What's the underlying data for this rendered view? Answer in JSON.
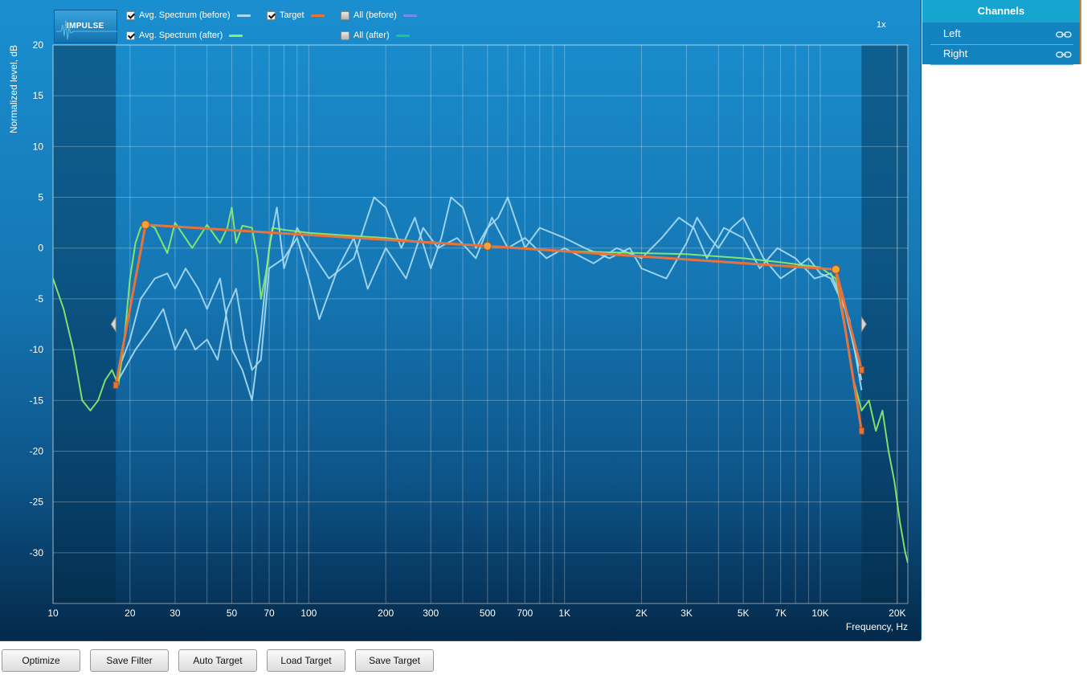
{
  "app": {
    "logo_text": "IMPULSE",
    "zoom": "1x"
  },
  "legend": [
    {
      "label": "Avg. Spectrum (before)",
      "checked": true,
      "color": "#a9dcf2"
    },
    {
      "label": "Target",
      "checked": true,
      "color": "#e8733a"
    },
    {
      "label": "All (before)",
      "checked": false,
      "color": "#6f8ff0"
    },
    {
      "label": "Avg. Spectrum (after)",
      "checked": true,
      "color": "#8cf06a"
    },
    {
      "label": "All (after)",
      "checked": false,
      "color": "#19c98a"
    }
  ],
  "buttons": {
    "optimize": "Optimize",
    "save_filter": "Save Filter",
    "auto_target": "Auto Target",
    "load_target": "Load Target",
    "save_target": "Save Target"
  },
  "channels": {
    "title": "Channels",
    "items": [
      "Left",
      "Right"
    ],
    "link_icon": "link-icon"
  },
  "chart_data": {
    "type": "line",
    "xlabel": "Frequency, Hz",
    "ylabel": "Normalized level, dB",
    "xscale": "log",
    "xlim": [
      10,
      22000
    ],
    "ylim": [
      -35,
      20
    ],
    "grid": true,
    "x_ticks": [
      10,
      20,
      30,
      50,
      70,
      100,
      200,
      300,
      500,
      700,
      1000,
      2000,
      3000,
      5000,
      7000,
      10000,
      20000
    ],
    "x_tick_labels": [
      "10",
      "20",
      "30",
      "50",
      "70",
      "100",
      "200",
      "300",
      "500",
      "700",
      "1K",
      "2K",
      "3K",
      "5K",
      "7K",
      "10K",
      "20K"
    ],
    "y_ticks": [
      20,
      15,
      10,
      5,
      0,
      -5,
      -10,
      -15,
      -20,
      -25,
      -30
    ],
    "y_tick_labels": [
      "20",
      "15",
      "10",
      "5",
      "0",
      "-5",
      "-10",
      "-15",
      "-20",
      "-25",
      "-30"
    ],
    "excluded_ranges": [
      [
        10,
        17.6
      ],
      [
        14500,
        22000
      ]
    ],
    "series": [
      {
        "name": "Target",
        "color": "#e8733a",
        "x": [
          17.6,
          23,
          500,
          11500,
          14500
        ],
        "y": [
          -13.5,
          2.3,
          0.2,
          -2.1,
          -18
        ]
      },
      {
        "name": "Target",
        "color": "#e8733a",
        "x": [
          11500,
          14500
        ],
        "y": [
          -2.1,
          -12
        ]
      },
      {
        "name": "Avg. Spectrum (after)",
        "color": "#8cf06a",
        "x": [
          10,
          11,
          12,
          13,
          14,
          15,
          16,
          17,
          18,
          19,
          20,
          21,
          22,
          23,
          25,
          28,
          30,
          35,
          40,
          45,
          48,
          50,
          52,
          55,
          60,
          63,
          65,
          68,
          72,
          80,
          100,
          150,
          200,
          300,
          500,
          700,
          1000,
          2000,
          3000,
          5000,
          7000,
          10000,
          11500,
          12500,
          13500,
          14500,
          15500,
          16500,
          17500,
          18500,
          19500,
          20500,
          21500,
          22000
        ],
        "y": [
          -3,
          -6,
          -10,
          -15,
          -16,
          -15,
          -13,
          -12,
          -13.5,
          -9,
          -3,
          0.5,
          2,
          2.5,
          2,
          -0.5,
          2.5,
          0,
          2.3,
          0.5,
          2,
          4,
          0.5,
          2.2,
          2,
          -1,
          -5,
          -2.5,
          2,
          1.8,
          1.5,
          1.2,
          1,
          0.5,
          0.2,
          0,
          -0.3,
          -0.5,
          -0.6,
          -1,
          -1.4,
          -1.9,
          -3,
          -8,
          -13,
          -16,
          -15,
          -18,
          -16,
          -20,
          -23,
          -27,
          -30,
          -31
        ]
      },
      {
        "name": "Avg. Spectrum (before)",
        "color": "#a9dcf2",
        "x": [
          18,
          20,
          22,
          25,
          28,
          30,
          33,
          37,
          40,
          45,
          50,
          55,
          60,
          65,
          70,
          75,
          80,
          90,
          100,
          120,
          150,
          180,
          200,
          230,
          260,
          300,
          330,
          360,
          400,
          450,
          500,
          550,
          600,
          700,
          800,
          1000,
          1200,
          1500,
          1800,
          2000,
          2500,
          3000,
          3300,
          3700,
          4000,
          4500,
          5000,
          6000,
          7000,
          8000,
          9000,
          10000,
          11000,
          12500,
          14500
        ],
        "y": [
          -12,
          -9,
          -5,
          -3,
          -2.5,
          -4,
          -2,
          -4,
          -6,
          -3,
          -10,
          -12,
          -15,
          -8,
          0,
          4,
          -2,
          2,
          0,
          -3,
          -1,
          5,
          4,
          0,
          3,
          -2,
          1,
          5,
          4,
          0,
          2,
          3,
          5,
          0,
          2,
          1,
          0,
          -1,
          0,
          -2,
          -3,
          0.5,
          3,
          1,
          0,
          2,
          3,
          -1,
          -3,
          -2,
          -1,
          -2.5,
          -3,
          -6,
          -13
        ]
      },
      {
        "name": "Avg. Spectrum (before)",
        "color": "#a9dcf2",
        "x": [
          18,
          21,
          24,
          27,
          30,
          33,
          36,
          40,
          44,
          48,
          52,
          56,
          60,
          65,
          70,
          80,
          90,
          100,
          110,
          130,
          150,
          170,
          200,
          240,
          280,
          320,
          380,
          450,
          520,
          600,
          700,
          850,
          1000,
          1300,
          1600,
          2000,
          2400,
          2800,
          3200,
          3600,
          4200,
          5000,
          5800,
          6800,
          8000,
          9500,
          11000,
          13000,
          14500
        ],
        "y": [
          -13,
          -10,
          -8,
          -6,
          -10,
          -8,
          -10,
          -9,
          -11,
          -6,
          -4,
          -9,
          -12,
          -11,
          -2,
          -1,
          1,
          -3,
          -7,
          -2,
          1,
          -4,
          0,
          -3,
          2,
          0,
          1,
          -1,
          3,
          0,
          1,
          -1,
          0,
          -1.5,
          0,
          -1,
          1,
          3,
          2,
          -1,
          2,
          1,
          -2,
          0,
          -1,
          -3,
          -2.5,
          -7,
          -14
        ]
      }
    ]
  }
}
